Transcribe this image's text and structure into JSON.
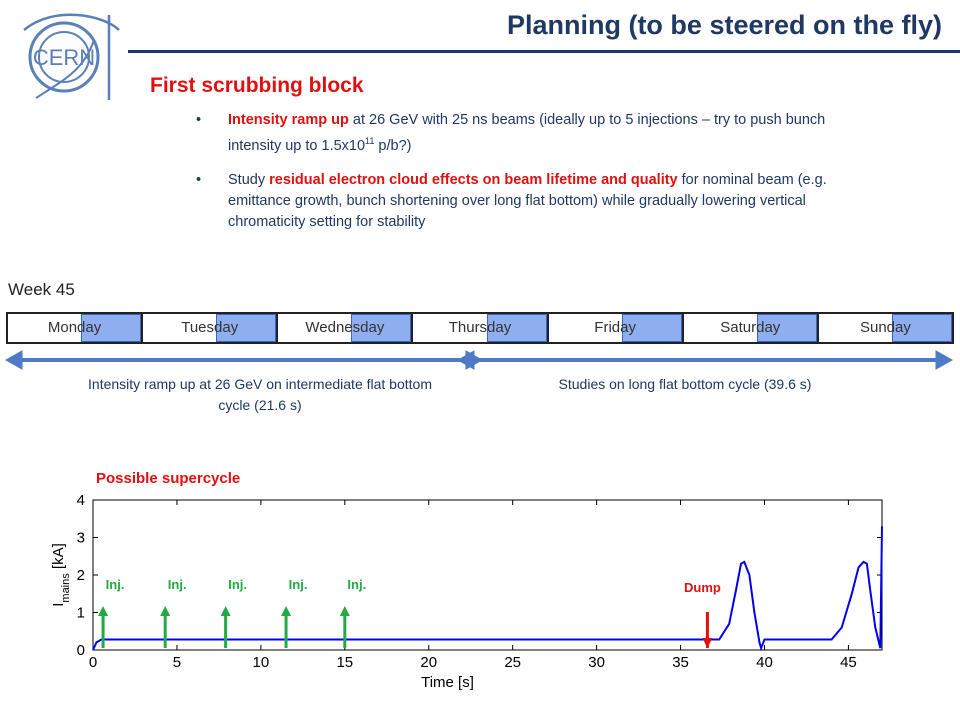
{
  "header": {
    "title": "Planning (to be steered on the fly)",
    "logo_text": "CERN"
  },
  "section": {
    "heading": "First scrubbing block"
  },
  "bullets": [
    {
      "red": "Intensity ramp up",
      "rest": " at 26 GeV with 25 ns beams (ideally up to 5 injections – try to push bunch intensity up to 1.5x10",
      "sup": "11",
      "tail": " p/b?)"
    },
    {
      "pre": "Study ",
      "red": "residual electron cloud effects on beam lifetime and quality",
      "rest": " for nominal beam (e.g. emittance growth, bunch shortening over long flat bottom) while gradually lowering vertical chromaticity setting for stability"
    }
  ],
  "bullet_symbol": "•",
  "week": {
    "label": "Week 45",
    "days": [
      "Monday",
      "Tuesday",
      "Wednesday",
      "Thursday",
      "Friday",
      "Saturday",
      "Sunday"
    ]
  },
  "timeline": {
    "left_caption": "Intensity ramp up at 26 GeV on intermediate flat bottom cycle (21.6 s)",
    "right_caption": "Studies on long flat bottom cycle (39.6 s)"
  },
  "supercycle": {
    "label": "Possible supercycle"
  },
  "colors": {
    "title": "#1f3864",
    "accent_red": "#e01010",
    "day_block": "#8faeef",
    "arrow": "#4f7ac7",
    "inj_arrow": "#22aa44",
    "curve": "#0000ee"
  },
  "chart_data": {
    "type": "line",
    "xlabel": "Time [s]",
    "ylabel_main": "I",
    "ylabel_sub": "mains",
    "ylabel_unit": " [kA]",
    "xlim": [
      0,
      47
    ],
    "ylim": [
      0,
      4
    ],
    "xticks": [
      0,
      5,
      10,
      15,
      20,
      25,
      30,
      35,
      40,
      45
    ],
    "yticks": [
      0,
      1,
      2,
      3,
      4
    ],
    "series": [
      {
        "x": [
          0,
          0.2,
          0.5,
          36.6,
          37.3,
          37.9,
          38.3,
          38.6,
          38.8,
          39.1,
          39.4,
          39.7,
          39.8,
          40.0,
          40.2,
          44.0,
          44.6,
          45.2,
          45.6,
          45.9,
          46.1,
          46.3,
          46.6,
          46.9,
          47.0
        ],
        "y": [
          0,
          0.2,
          0.28,
          0.28,
          0.28,
          0.7,
          1.6,
          2.3,
          2.35,
          2.0,
          1.0,
          0.2,
          0.05,
          0.28,
          0.28,
          0.28,
          0.6,
          1.5,
          2.2,
          2.35,
          2.3,
          1.6,
          0.6,
          0.05,
          3.3
        ]
      }
    ],
    "annotations": [
      {
        "text": "Inj.",
        "x": 0.6,
        "color": "green"
      },
      {
        "text": "Inj.",
        "x": 4.3,
        "color": "green"
      },
      {
        "text": "Inj.",
        "x": 7.9,
        "color": "green"
      },
      {
        "text": "Inj.",
        "x": 11.5,
        "color": "green"
      },
      {
        "text": "Inj.",
        "x": 15.0,
        "color": "green"
      },
      {
        "text": "Dump",
        "x": 36.6,
        "color": "red"
      }
    ]
  }
}
